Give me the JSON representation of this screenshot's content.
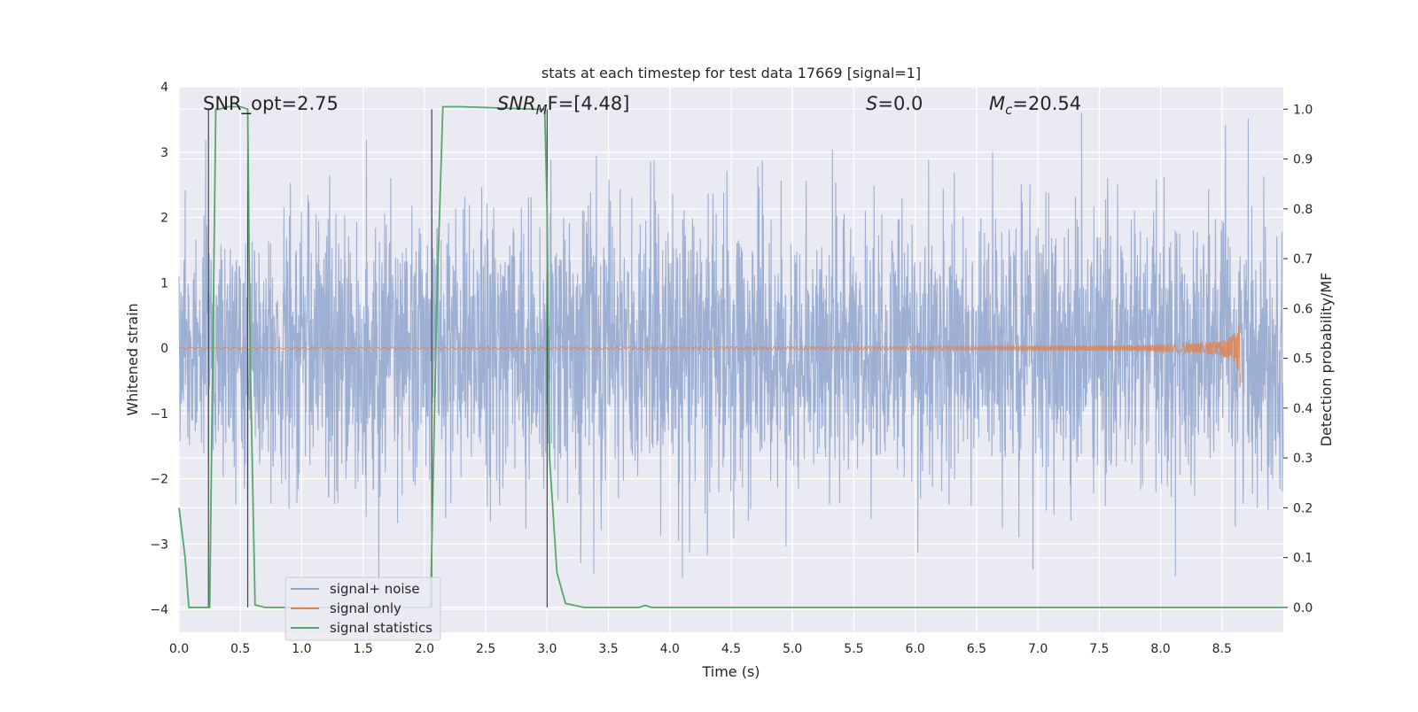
{
  "chart_data": {
    "type": "line",
    "title": "stats at each timestep for test data 17669 [signal=1]",
    "xlabel": "Time (s)",
    "ylabel": "Whitened strain",
    "ylabel_right": "Detection probability/MF",
    "xlim": [
      0,
      9.0
    ],
    "ylim": [
      -4.35,
      4
    ],
    "ylim_right": [
      -0.05,
      1.045
    ],
    "x_ticks": [
      0.0,
      0.5,
      1.0,
      1.5,
      2.0,
      2.5,
      3.0,
      3.5,
      4.0,
      4.5,
      5.0,
      5.5,
      6.0,
      6.5,
      7.0,
      7.5,
      8.0,
      8.5
    ],
    "x_tick_labels": [
      "0.0",
      "0.5",
      "1.0",
      "1.5",
      "2.0",
      "2.5",
      "3.0",
      "3.5",
      "4.0",
      "4.5",
      "5.0",
      "5.5",
      "6.0",
      "6.5",
      "7.0",
      "7.5",
      "8.0",
      "8.5"
    ],
    "y_ticks": [
      -4,
      -3,
      -2,
      -1,
      0,
      1,
      2,
      3,
      4
    ],
    "y_tick_labels": [
      "−4",
      "−3",
      "−2",
      "−1",
      "0",
      "1",
      "2",
      "3",
      "4"
    ],
    "y_ticks_right": [
      0.0,
      0.1,
      0.2,
      0.3,
      0.4,
      0.5,
      0.6,
      0.7,
      0.8,
      0.9,
      1.0
    ],
    "y_tick_labels_right": [
      "0.0",
      "0.1",
      "0.2",
      "0.3",
      "0.4",
      "0.5",
      "0.6",
      "0.7",
      "0.8",
      "0.9",
      "1.0"
    ],
    "grid": true,
    "legend_position": "lower-left",
    "annotations": {
      "snr_opt": "SNR_opt=2.75",
      "snr_mf": "SNR",
      "snr_mf_sub": "M",
      "snr_mf_rest": "F=[4.48]",
      "s_label": "S",
      "s_rest": "=0.0",
      "mc_label": "M",
      "mc_sub": "c",
      "mc_rest": "=20.54"
    },
    "series": [
      {
        "name": "signal+ noise",
        "color": "#8fa5cc",
        "description_values": "noise band roughly between -1.7 and 1.7 with spikes up to ±3.6"
      },
      {
        "name": "signal only",
        "color": "#dd8452",
        "chirp_end_time": 8.65,
        "chirp_peak_amplitude": 0.6
      },
      {
        "name": "signal statistics",
        "color": "#55a868",
        "x": [
          0.0,
          0.05,
          0.08,
          0.25,
          0.3,
          0.33,
          0.4,
          0.5,
          0.56,
          0.58,
          0.62,
          0.7,
          0.9,
          2.05,
          2.1,
          2.15,
          2.3,
          2.9,
          2.98,
          3.0,
          3.02,
          3.08,
          3.15,
          3.3,
          3.75,
          3.8,
          3.85,
          4.0,
          5.5,
          9.0
        ],
        "y": [
          0.2,
          0.1,
          0.0,
          0.0,
          1.0,
          1.0,
          1.005,
          1.005,
          1.0,
          0.5,
          0.005,
          0.0,
          0.0,
          0.0,
          0.6,
          1.005,
          1.005,
          1.0,
          1.0,
          0.8,
          0.3,
          0.07,
          0.008,
          0.0,
          0.0,
          0.004,
          0.0,
          0.0,
          0.0,
          0.0
        ]
      }
    ],
    "markers_vertical": [
      0.24,
      0.56,
      2.06,
      3.0
    ]
  },
  "legend": {
    "items": [
      {
        "label": "signal+ noise",
        "color": "#8fa5cc"
      },
      {
        "label": "signal only",
        "color": "#dd8452"
      },
      {
        "label": "signal statistics",
        "color": "#55a868"
      }
    ]
  }
}
